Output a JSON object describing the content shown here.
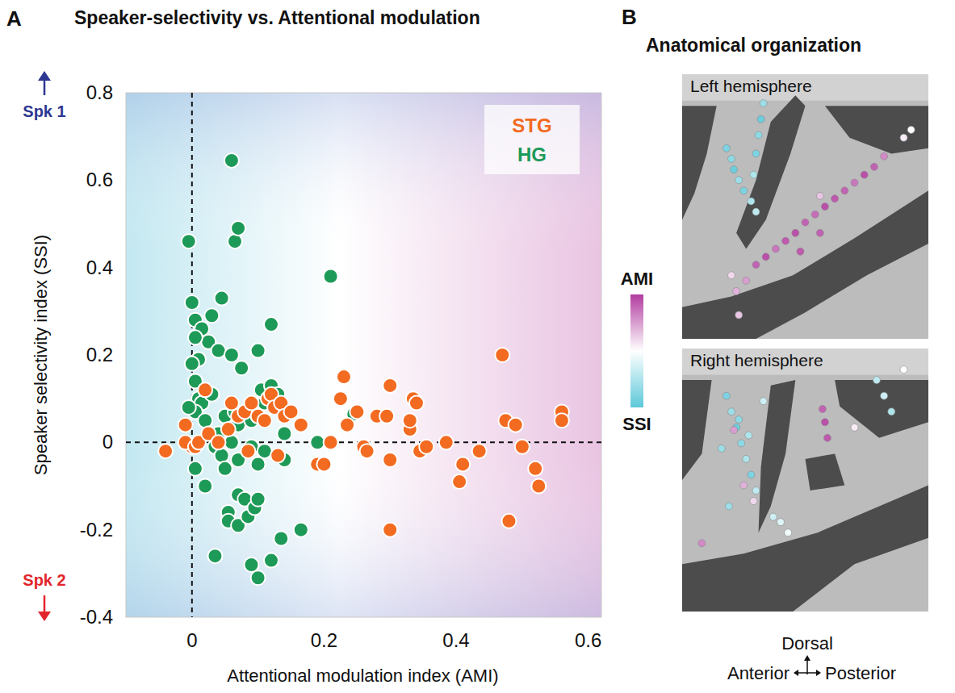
{
  "chart_data": [
    {
      "type": "scatter",
      "panel_label": "A",
      "title": "Speaker-selectivity vs. Attentional modulation",
      "x_label": "Attentional modulation index (AMI)",
      "y_label": "Speaker selectivity index (SSI)",
      "xlim": [
        -0.1,
        0.62
      ],
      "ylim": [
        -0.4,
        0.8
      ],
      "xticks": [
        0,
        0.2,
        0.4,
        0.6
      ],
      "yticks": [
        -0.4,
        -0.2,
        0,
        0.2,
        0.4,
        0.6,
        0.8
      ],
      "grid": false,
      "legend": "upper right",
      "reference_lines": {
        "x": [
          0
        ],
        "y": [
          0
        ]
      },
      "annotations": [
        {
          "text": "Spk 1",
          "color": "#2d3792"
        },
        {
          "text": "Spk 2",
          "color": "#e3242b"
        }
      ],
      "series": [
        {
          "name": "HG",
          "color": "#1e9a58",
          "marker": "circle",
          "x": [
            -0.005,
            0.06,
            0.065,
            0.07,
            0.21,
            0.0,
            0.005,
            0.015,
            0.03,
            0.045,
            0.025,
            0.005,
            0.01,
            0.0,
            0.04,
            0.06,
            0.075,
            0.1,
            0.12,
            0.005,
            0.01,
            0.015,
            0.005,
            -0.005,
            0.02,
            0.03,
            0.04,
            0.05,
            0.06,
            0.065,
            0.07,
            0.08,
            0.09,
            0.1,
            0.105,
            0.11,
            0.12,
            0.125,
            0.13,
            0.14,
            0.035,
            0.045,
            0.05,
            0.07,
            0.09,
            0.1,
            0.11,
            0.005,
            0.02,
            0.055,
            0.055,
            0.07,
            0.07,
            0.08,
            0.085,
            0.095,
            0.1,
            0.09,
            0.1,
            0.12,
            0.135,
            0.165,
            0.035,
            0.245,
            0.19,
            0.14
          ],
          "values": [
            0.46,
            0.645,
            0.46,
            0.49,
            0.38,
            0.32,
            0.28,
            0.26,
            0.29,
            0.33,
            0.23,
            0.24,
            0.19,
            0.18,
            0.21,
            0.2,
            0.17,
            0.21,
            0.27,
            0.14,
            0.1,
            0.09,
            0.07,
            0.08,
            0.05,
            0.11,
            0.02,
            0.06,
            0.0,
            0.07,
            0.04,
            0.07,
            0.05,
            0.06,
            0.12,
            0.09,
            0.13,
            0.1,
            0.11,
            0.02,
            -0.01,
            -0.03,
            -0.06,
            -0.04,
            -0.01,
            -0.05,
            -0.02,
            -0.06,
            -0.1,
            -0.16,
            -0.18,
            -0.19,
            -0.12,
            -0.13,
            -0.17,
            -0.15,
            -0.13,
            -0.28,
            -0.31,
            -0.27,
            -0.22,
            -0.2,
            -0.26,
            0.065,
            0.0,
            -0.04
          ]
        },
        {
          "name": "STG",
          "color": "#f26b21",
          "marker": "circle",
          "x": [
            -0.04,
            0.0,
            -0.01,
            -0.01,
            0.005,
            0.01,
            0.02,
            0.025,
            0.04,
            0.055,
            0.06,
            0.07,
            0.08,
            0.085,
            0.09,
            0.1,
            0.11,
            0.115,
            0.12,
            0.125,
            0.13,
            0.135,
            0.14,
            0.15,
            0.165,
            0.19,
            0.2,
            0.21,
            0.225,
            0.23,
            0.235,
            0.25,
            0.26,
            0.265,
            0.28,
            0.295,
            0.3,
            0.3,
            0.3,
            0.33,
            0.33,
            0.335,
            0.34,
            0.345,
            0.355,
            0.385,
            0.405,
            0.41,
            0.435,
            0.47,
            0.475,
            0.48,
            0.49,
            0.5,
            0.52,
            0.525,
            0.56,
            0.56
          ],
          "values": [
            -0.02,
            -0.01,
            0.04,
            0.0,
            -0.01,
            0.0,
            0.12,
            0.02,
            0.0,
            0.03,
            0.09,
            0.06,
            0.07,
            -0.02,
            0.09,
            0.06,
            0.05,
            0.1,
            0.11,
            0.08,
            -0.03,
            0.09,
            0.06,
            0.07,
            0.04,
            -0.05,
            -0.05,
            0.0,
            0.1,
            0.15,
            0.04,
            0.07,
            -0.01,
            -0.02,
            0.06,
            0.06,
            0.13,
            -0.04,
            -0.2,
            0.03,
            0.05,
            0.1,
            0.09,
            -0.02,
            -0.01,
            0.0,
            -0.09,
            -0.05,
            -0.02,
            0.2,
            0.05,
            -0.18,
            0.04,
            -0.01,
            -0.06,
            -0.1,
            0.07,
            0.05
          ]
        }
      ]
    },
    {
      "type": "image",
      "panel_label": "B",
      "title": "Anatomical organization",
      "colorbar": {
        "labels": [
          "AMI",
          "SSI"
        ],
        "range": [
          -1,
          1
        ]
      },
      "orientation": {
        "vertical": "Dorsal",
        "left": "Anterior",
        "right": "Posterior"
      },
      "panels": [
        {
          "title": "Left hemisphere",
          "electrodes": {
            "x": [
              18,
              20,
              21,
              23,
              25,
              28,
              30,
              33,
              32,
              31,
              30,
              29,
              30,
              34,
              38,
              42,
              46,
              50,
              54,
              58,
              62,
              66,
              70,
              74,
              78,
              82,
              48,
              56,
              26,
              22,
              23,
              20,
              90,
              93,
              56
            ],
            "y": [
              28,
              32,
              36,
              40,
              44,
              48,
              52,
              11,
              17,
              23,
              30,
              38,
              72,
              69,
              66,
              63,
              60,
              56,
              53,
              50,
              47,
              44,
              41,
              38,
              35,
              31,
              67,
              60,
              78,
              82,
              91,
              76,
              24,
              21,
              46
            ],
            "values": [
              -0.8,
              -0.7,
              -0.9,
              -0.6,
              -0.8,
              -0.5,
              -0.4,
              -0.6,
              -0.9,
              -0.7,
              -0.8,
              -0.5,
              0.8,
              0.9,
              0.7,
              0.85,
              0.9,
              0.8,
              0.75,
              0.9,
              0.85,
              0.8,
              0.7,
              0.9,
              0.8,
              0.6,
              0.85,
              0.8,
              0.5,
              0.4,
              0.3,
              0.2,
              0.1,
              0.0,
              0.3
            ]
          }
        },
        {
          "title": "Right hemisphere",
          "electrodes": {
            "x": [
              18,
              20,
              22,
              24,
              26,
              28,
              30,
              19,
              23,
              27,
              79,
              82,
              85,
              16,
              33,
              21,
              58,
              59,
              57,
              8,
              25,
              40,
              43,
              37,
              90,
              70,
              29
            ],
            "y": [
              18,
              24,
              30,
              36,
              42,
              48,
              54,
              60,
              27,
              33,
              12,
              18,
              24,
              38,
              20,
              31,
              28,
              34,
              23,
              74,
              52,
              66,
              70,
              64,
              8,
              30,
              58
            ],
            "values": [
              -0.8,
              -0.6,
              -0.9,
              -0.7,
              -0.5,
              -0.8,
              -0.4,
              -0.6,
              -0.7,
              -0.5,
              -0.4,
              -0.3,
              -0.5,
              -0.6,
              -0.3,
              0.5,
              0.9,
              0.85,
              0.8,
              0.6,
              0.4,
              -0.2,
              -0.1,
              -0.3,
              0.0,
              0.1,
              0.2
            ]
          }
        }
      ]
    }
  ]
}
